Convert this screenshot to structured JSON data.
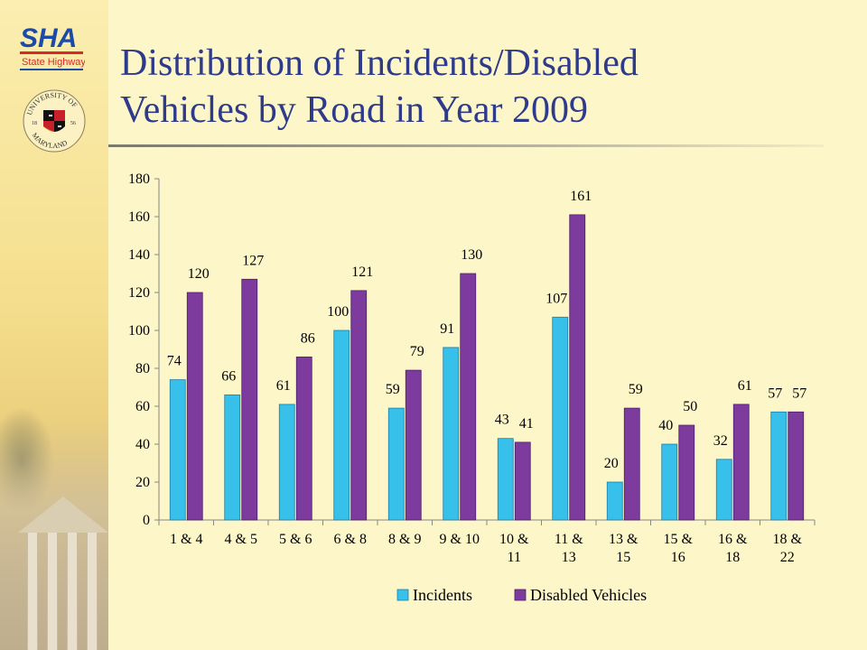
{
  "slide": {
    "title_line1": "Distribution of Incidents/Disabled",
    "title_line2": "Vehicles by Road in Year 2009"
  },
  "logos": {
    "sha_text": "SHA",
    "sha_subtext": "State Highway",
    "umd_text_top": "UNIVERSITY OF",
    "umd_text_bottom": "MARYLAND",
    "umd_year_left": "18",
    "umd_year_right": "56"
  },
  "colors": {
    "incidents": "#36c0ea",
    "disabled_vehicles": "#7d3b9e",
    "title": "#2e3b8a"
  },
  "chart_data": {
    "type": "bar",
    "categories": [
      [
        "1 & 4"
      ],
      [
        "4 & 5"
      ],
      [
        "5 & 6"
      ],
      [
        "6 & 8"
      ],
      [
        "8 & 9"
      ],
      [
        "9 & 10"
      ],
      [
        "10 &",
        "11"
      ],
      [
        "11 &",
        "13"
      ],
      [
        "13 &",
        "15"
      ],
      [
        "15 &",
        "16"
      ],
      [
        "16 &",
        "18"
      ],
      [
        "18 &",
        "22"
      ]
    ],
    "series": [
      {
        "name": "Incidents",
        "values": [
          74,
          66,
          61,
          100,
          59,
          91,
          43,
          107,
          20,
          40,
          32,
          57
        ]
      },
      {
        "name": "Disabled Vehicles",
        "values": [
          120,
          127,
          86,
          121,
          79,
          130,
          41,
          161,
          59,
          50,
          61,
          57
        ]
      }
    ],
    "title": "",
    "xlabel": "",
    "ylabel": "",
    "ylim": [
      0,
      180
    ],
    "yticks": [
      0,
      20,
      40,
      60,
      80,
      100,
      120,
      140,
      160,
      180
    ],
    "grid": false,
    "legend": "bottom"
  }
}
